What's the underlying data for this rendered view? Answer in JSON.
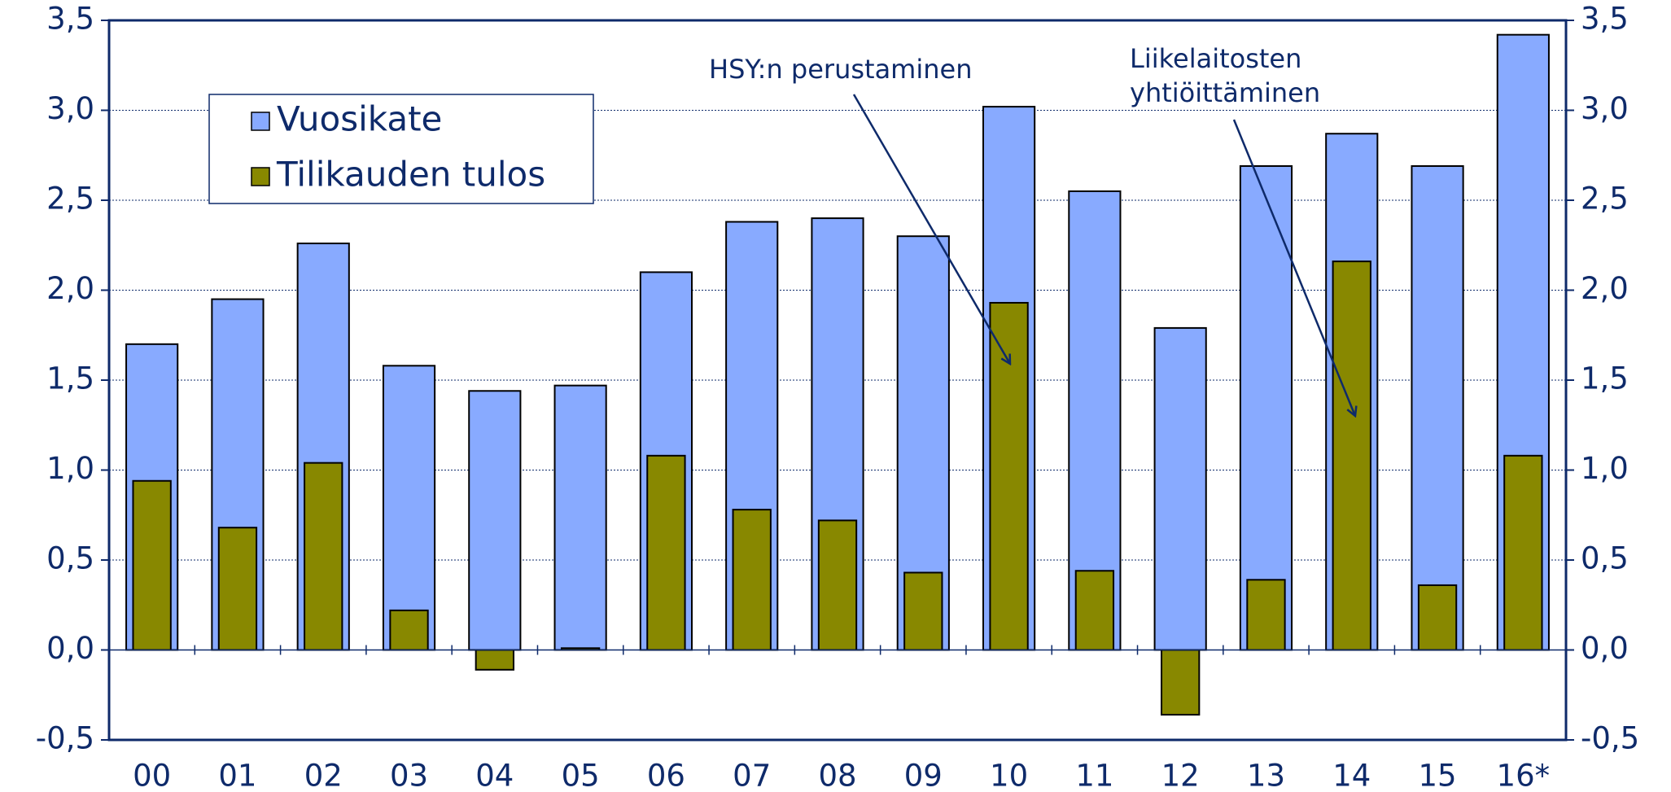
{
  "chart_data": {
    "type": "bar",
    "categories": [
      "00",
      "01",
      "02",
      "03",
      "04",
      "05",
      "06",
      "07",
      "08",
      "09",
      "10",
      "11",
      "12",
      "13",
      "14",
      "15",
      "16*"
    ],
    "series": [
      {
        "name": "Vuosikate",
        "color": "#88aaff",
        "values": [
          1.7,
          1.95,
          2.26,
          1.58,
          1.44,
          1.47,
          2.1,
          2.38,
          2.4,
          2.3,
          3.02,
          2.55,
          1.79,
          2.69,
          2.87,
          2.69,
          3.42
        ]
      },
      {
        "name": "Tilikauden tulos",
        "color": "#888800",
        "values": [
          0.94,
          0.68,
          1.04,
          0.22,
          -0.11,
          0.01,
          1.08,
          0.78,
          0.72,
          0.43,
          1.93,
          0.44,
          -0.36,
          0.39,
          2.16,
          0.36,
          1.08
        ]
      }
    ],
    "ylim": [
      -0.5,
      3.5
    ],
    "yticks": [
      {
        "value": -0.5,
        "label": "-0,5"
      },
      {
        "value": 0,
        "label": "0,0"
      },
      {
        "value": 0.5,
        "label": "0,5"
      },
      {
        "value": 1,
        "label": "1,0"
      },
      {
        "value": 1.5,
        "label": "1,5"
      },
      {
        "value": 2,
        "label": "2,0"
      },
      {
        "value": 2.5,
        "label": "2,5"
      },
      {
        "value": 3,
        "label": "3,0"
      },
      {
        "value": 3.5,
        "label": "3,5"
      }
    ],
    "y2lim": [
      -0.5,
      3.5
    ],
    "y2ticks": [
      {
        "value": -0.5,
        "label": "-0,5"
      },
      {
        "value": 0,
        "label": "0,0"
      },
      {
        "value": 0.5,
        "label": "0,5"
      },
      {
        "value": 1,
        "label": "1,0"
      },
      {
        "value": 1.5,
        "label": "1,5"
      },
      {
        "value": 2,
        "label": "2,0"
      },
      {
        "value": 2.5,
        "label": "2,5"
      },
      {
        "value": 3,
        "label": "3,0"
      },
      {
        "value": 3.5,
        "label": "3,5"
      }
    ],
    "grid": true,
    "legend": "upper left",
    "annotations": [
      {
        "text": [
          "HSY:n perustaminen"
        ]
      },
      {
        "text": [
          "Liikelaitosten",
          "yhtiöittäminen"
        ]
      }
    ]
  }
}
